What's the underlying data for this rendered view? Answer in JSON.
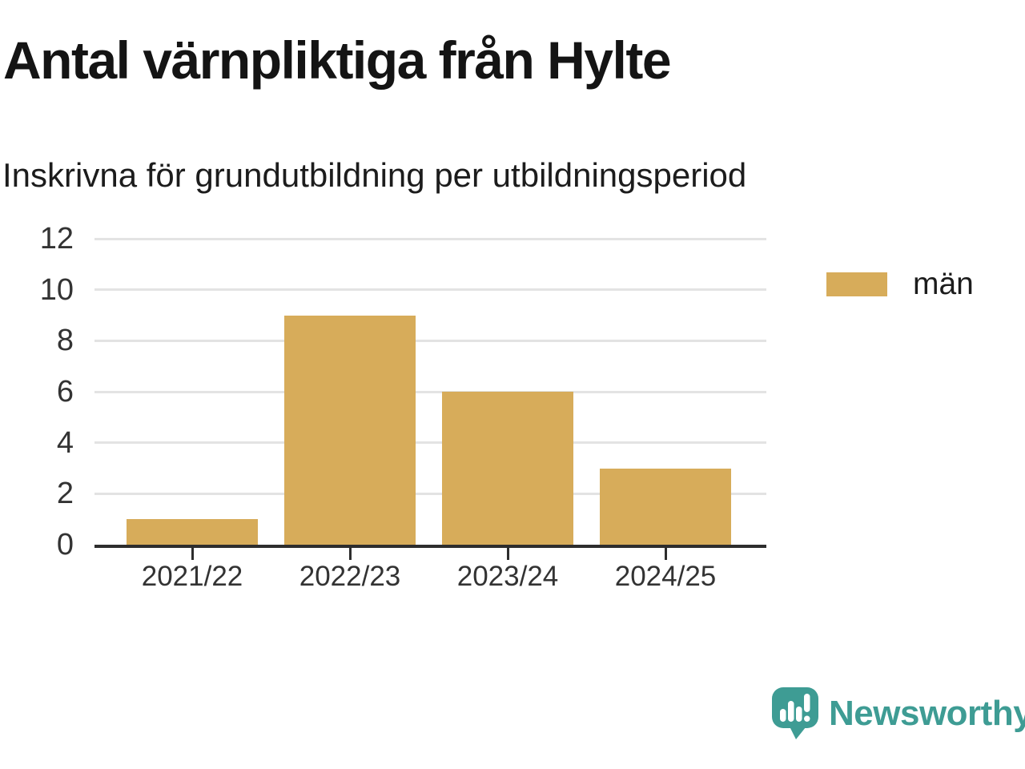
{
  "header": {
    "title": "Antal värnpliktiga från Hylte",
    "subtitle": "Inskrivna för grundutbildning per utbildningsperiod"
  },
  "chart_data": {
    "type": "bar",
    "categories": [
      "2021/22",
      "2022/23",
      "2023/24",
      "2024/25"
    ],
    "series": [
      {
        "name": "män",
        "values": [
          1,
          9,
          6,
          3
        ]
      }
    ],
    "title": "Antal värnpliktiga från Hylte",
    "subtitle": "Inskrivna för grundutbildning per utbildningsperiod",
    "xlabel": "",
    "ylabel": "",
    "ylim": [
      0,
      12
    ],
    "yticks": [
      0,
      2,
      4,
      6,
      8,
      10,
      12
    ],
    "grid": true,
    "legend_position": "right"
  },
  "legend": {
    "items": [
      {
        "label": "män",
        "color": "#D7AC5A"
      }
    ]
  },
  "branding": {
    "name": "Newsworthy",
    "color": "#3E9C94"
  },
  "colors": {
    "bar": "#D7AC5A",
    "grid": "#E3E3E3",
    "axis": "#2D2D2D",
    "tick_text": "#333333",
    "title_text": "#141414",
    "brand_teal": "#3E9C94"
  }
}
